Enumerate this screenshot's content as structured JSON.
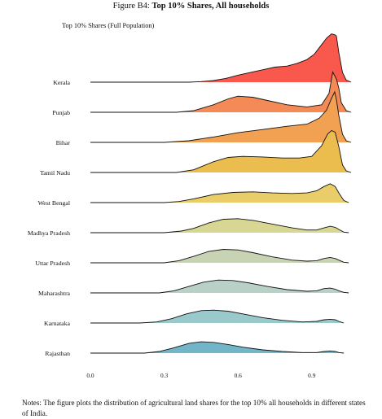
{
  "figure": {
    "label": "Figure B4:",
    "title": "Top 10% Shares, All households",
    "notes": "Notes: The figure plots the distribution of agricultural land shares for the top 10% all households in different states of India."
  },
  "chart_data": {
    "type": "area",
    "subtype": "ridgeline",
    "title": "Top 10% Shares (Full Population)",
    "xlabel": "",
    "ylabel": "",
    "xlim": [
      0.0,
      1.08
    ],
    "x_ticks": [
      "0.0",
      "0.3",
      "0.6",
      "0.9"
    ],
    "x_tick_values": [
      0.0,
      0.3,
      0.6,
      0.9
    ],
    "grid": false,
    "legend": "none",
    "series": [
      {
        "name": "Kerala",
        "color": "#f8594c",
        "points": [
          [
            0.0,
            0.0
          ],
          [
            0.4,
            0.0
          ],
          [
            0.45,
            0.01
          ],
          [
            0.5,
            0.03
          ],
          [
            0.55,
            0.07
          ],
          [
            0.6,
            0.13
          ],
          [
            0.65,
            0.18
          ],
          [
            0.7,
            0.23
          ],
          [
            0.75,
            0.28
          ],
          [
            0.8,
            0.3
          ],
          [
            0.84,
            0.35
          ],
          [
            0.88,
            0.42
          ],
          [
            0.91,
            0.52
          ],
          [
            0.94,
            0.7
          ],
          [
            0.96,
            0.82
          ],
          [
            0.98,
            0.9
          ],
          [
            0.995,
            0.88
          ],
          [
            1.0,
            0.86
          ],
          [
            1.01,
            0.55
          ],
          [
            1.025,
            0.18
          ],
          [
            1.04,
            0.04
          ],
          [
            1.06,
            0.0
          ]
        ]
      },
      {
        "name": "Punjab",
        "color": "#f48a55",
        "points": [
          [
            0.0,
            0.0
          ],
          [
            0.35,
            0.0
          ],
          [
            0.42,
            0.03
          ],
          [
            0.5,
            0.14
          ],
          [
            0.56,
            0.25
          ],
          [
            0.6,
            0.3
          ],
          [
            0.66,
            0.28
          ],
          [
            0.72,
            0.22
          ],
          [
            0.8,
            0.14
          ],
          [
            0.88,
            0.1
          ],
          [
            0.94,
            0.14
          ],
          [
            0.97,
            0.35
          ],
          [
            0.985,
            0.75
          ],
          [
            1.0,
            0.62
          ],
          [
            1.01,
            0.45
          ],
          [
            1.02,
            0.18
          ],
          [
            1.04,
            0.03
          ],
          [
            1.06,
            0.0
          ]
        ]
      },
      {
        "name": "Bihar",
        "color": "#f2a152",
        "points": [
          [
            0.0,
            0.0
          ],
          [
            0.3,
            0.0
          ],
          [
            0.4,
            0.03
          ],
          [
            0.5,
            0.1
          ],
          [
            0.6,
            0.18
          ],
          [
            0.7,
            0.24
          ],
          [
            0.8,
            0.3
          ],
          [
            0.88,
            0.34
          ],
          [
            0.93,
            0.45
          ],
          [
            0.96,
            0.6
          ],
          [
            0.98,
            0.82
          ],
          [
            0.993,
            0.94
          ],
          [
            1.0,
            0.8
          ],
          [
            1.01,
            0.5
          ],
          [
            1.025,
            0.15
          ],
          [
            1.04,
            0.03
          ],
          [
            1.06,
            0.0
          ]
        ]
      },
      {
        "name": "Tamil Nadu",
        "color": "#ebbd4f",
        "points": [
          [
            0.0,
            0.0
          ],
          [
            0.35,
            0.0
          ],
          [
            0.42,
            0.05
          ],
          [
            0.5,
            0.2
          ],
          [
            0.56,
            0.28
          ],
          [
            0.62,
            0.3
          ],
          [
            0.7,
            0.29
          ],
          [
            0.78,
            0.27
          ],
          [
            0.85,
            0.27
          ],
          [
            0.9,
            0.3
          ],
          [
            0.94,
            0.5
          ],
          [
            0.965,
            0.72
          ],
          [
            0.98,
            0.78
          ],
          [
            0.995,
            0.75
          ],
          [
            1.01,
            0.48
          ],
          [
            1.025,
            0.14
          ],
          [
            1.04,
            0.03
          ],
          [
            1.06,
            0.0
          ]
        ]
      },
      {
        "name": "West Bengal",
        "color": "#e8cd68",
        "points": [
          [
            0.0,
            0.0
          ],
          [
            0.3,
            0.0
          ],
          [
            0.36,
            0.02
          ],
          [
            0.42,
            0.07
          ],
          [
            0.5,
            0.15
          ],
          [
            0.58,
            0.19
          ],
          [
            0.66,
            0.2
          ],
          [
            0.74,
            0.18
          ],
          [
            0.82,
            0.17
          ],
          [
            0.88,
            0.18
          ],
          [
            0.92,
            0.22
          ],
          [
            0.95,
            0.3
          ],
          [
            0.975,
            0.35
          ],
          [
            0.995,
            0.3
          ],
          [
            1.01,
            0.18
          ],
          [
            1.03,
            0.04
          ],
          [
            1.05,
            0.0
          ]
        ]
      },
      {
        "name": "Madhya Pradesh",
        "color": "#d8d693",
        "points": [
          [
            0.0,
            0.0
          ],
          [
            0.3,
            0.0
          ],
          [
            0.37,
            0.03
          ],
          [
            0.42,
            0.08
          ],
          [
            0.48,
            0.18
          ],
          [
            0.54,
            0.25
          ],
          [
            0.6,
            0.26
          ],
          [
            0.66,
            0.23
          ],
          [
            0.74,
            0.16
          ],
          [
            0.82,
            0.09
          ],
          [
            0.88,
            0.05
          ],
          [
            0.92,
            0.05
          ],
          [
            0.95,
            0.09
          ],
          [
            0.975,
            0.12
          ],
          [
            0.995,
            0.1
          ],
          [
            1.01,
            0.06
          ],
          [
            1.03,
            0.01
          ],
          [
            1.05,
            0.0
          ]
        ]
      },
      {
        "name": "Uttar Pradesh",
        "color": "#c8d3b3",
        "points": [
          [
            0.0,
            0.0
          ],
          [
            0.3,
            0.0
          ],
          [
            0.36,
            0.04
          ],
          [
            0.42,
            0.12
          ],
          [
            0.48,
            0.21
          ],
          [
            0.54,
            0.25
          ],
          [
            0.6,
            0.24
          ],
          [
            0.66,
            0.19
          ],
          [
            0.74,
            0.11
          ],
          [
            0.82,
            0.05
          ],
          [
            0.88,
            0.03
          ],
          [
            0.92,
            0.04
          ],
          [
            0.95,
            0.08
          ],
          [
            0.975,
            0.1
          ],
          [
            0.995,
            0.08
          ],
          [
            1.01,
            0.05
          ],
          [
            1.03,
            0.01
          ],
          [
            1.05,
            0.0
          ]
        ]
      },
      {
        "name": "Maharashtra",
        "color": "#b8d0c5",
        "points": [
          [
            0.0,
            0.0
          ],
          [
            0.28,
            0.0
          ],
          [
            0.34,
            0.04
          ],
          [
            0.4,
            0.12
          ],
          [
            0.46,
            0.2
          ],
          [
            0.52,
            0.24
          ],
          [
            0.58,
            0.23
          ],
          [
            0.64,
            0.19
          ],
          [
            0.72,
            0.12
          ],
          [
            0.8,
            0.06
          ],
          [
            0.88,
            0.03
          ],
          [
            0.92,
            0.04
          ],
          [
            0.95,
            0.08
          ],
          [
            0.975,
            0.09
          ],
          [
            0.995,
            0.07
          ],
          [
            1.01,
            0.04
          ],
          [
            1.03,
            0.01
          ],
          [
            1.05,
            0.0
          ]
        ]
      },
      {
        "name": "Karnataka",
        "color": "#9ac9cc",
        "points": [
          [
            0.0,
            0.0
          ],
          [
            0.2,
            0.0
          ],
          [
            0.27,
            0.02
          ],
          [
            0.33,
            0.08
          ],
          [
            0.39,
            0.17
          ],
          [
            0.45,
            0.23
          ],
          [
            0.5,
            0.24
          ],
          [
            0.56,
            0.22
          ],
          [
            0.62,
            0.17
          ],
          [
            0.7,
            0.1
          ],
          [
            0.78,
            0.05
          ],
          [
            0.86,
            0.02
          ],
          [
            0.92,
            0.03
          ],
          [
            0.95,
            0.06
          ],
          [
            0.975,
            0.07
          ],
          [
            0.995,
            0.06
          ],
          [
            1.01,
            0.03
          ],
          [
            1.03,
            0.0
          ]
        ]
      },
      {
        "name": "Rajasthan",
        "color": "#72b5c8",
        "points": [
          [
            0.0,
            0.0
          ],
          [
            0.22,
            0.0
          ],
          [
            0.28,
            0.03
          ],
          [
            0.34,
            0.1
          ],
          [
            0.4,
            0.18
          ],
          [
            0.45,
            0.21
          ],
          [
            0.5,
            0.2
          ],
          [
            0.56,
            0.16
          ],
          [
            0.62,
            0.11
          ],
          [
            0.7,
            0.06
          ],
          [
            0.78,
            0.03
          ],
          [
            0.86,
            0.01
          ],
          [
            0.92,
            0.01
          ],
          [
            0.95,
            0.03
          ],
          [
            0.975,
            0.04
          ],
          [
            0.995,
            0.03
          ],
          [
            1.01,
            0.01
          ],
          [
            1.03,
            0.0
          ]
        ]
      }
    ]
  }
}
